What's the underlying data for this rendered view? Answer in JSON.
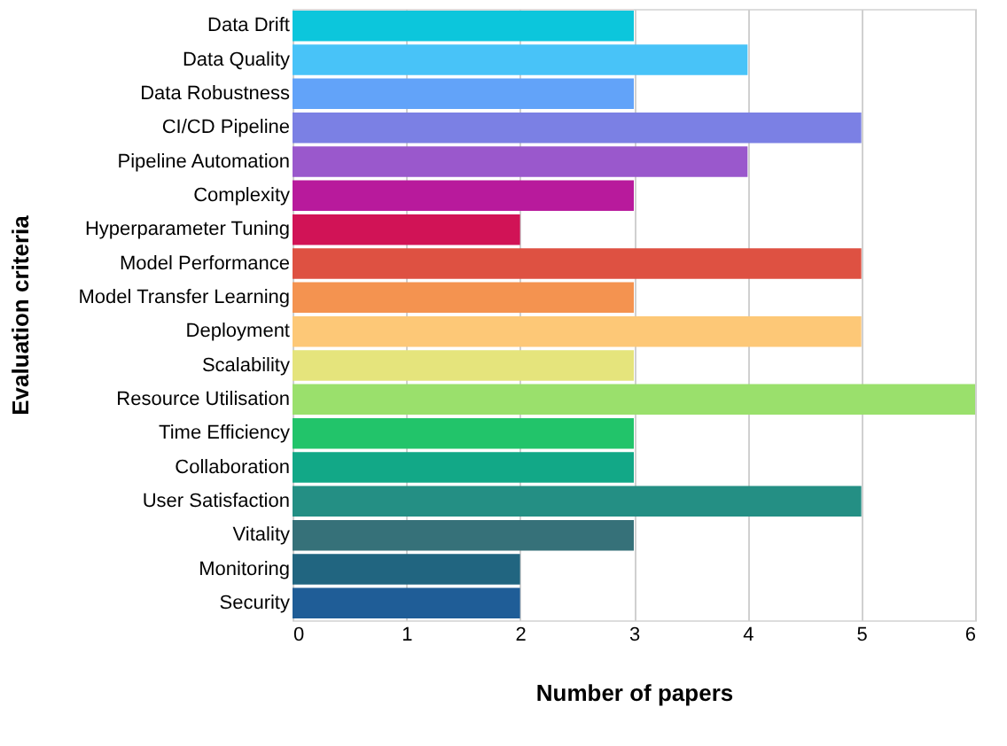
{
  "chart_data": {
    "type": "bar",
    "orientation": "horizontal",
    "xlabel": "Number of papers",
    "ylabel": "Evaluation criteria",
    "categories": [
      "Data Drift",
      "Data Quality",
      "Data Robustness",
      "CI/CD Pipeline",
      "Pipeline Automation",
      "Complexity",
      "Hyperparameter Tuning",
      "Model Performance",
      "Model Transfer Learning",
      "Deployment",
      "Scalability",
      "Resource Utilisation",
      "Time Efficiency",
      "Collaboration",
      "User Satisfaction",
      "Vitality",
      "Monitoring",
      "Security"
    ],
    "values": [
      3,
      4,
      3,
      5,
      4,
      3,
      2,
      5,
      3,
      5,
      3,
      6,
      3,
      3,
      5,
      3,
      2,
      2
    ],
    "colors": [
      "#0cc6dc",
      "#48c3f8",
      "#62a3f9",
      "#7b80e4",
      "#9a58cc",
      "#b81a9c",
      "#d11356",
      "#de5142",
      "#f49350",
      "#fdc877",
      "#e5e47c",
      "#9ae06c",
      "#22c46a",
      "#12a887",
      "#248f84",
      "#367179",
      "#216580",
      "#1f5d97"
    ],
    "xlim": [
      0,
      6
    ],
    "xticks": [
      0,
      1,
      2,
      3,
      4,
      5,
      6
    ],
    "grid": "x"
  }
}
